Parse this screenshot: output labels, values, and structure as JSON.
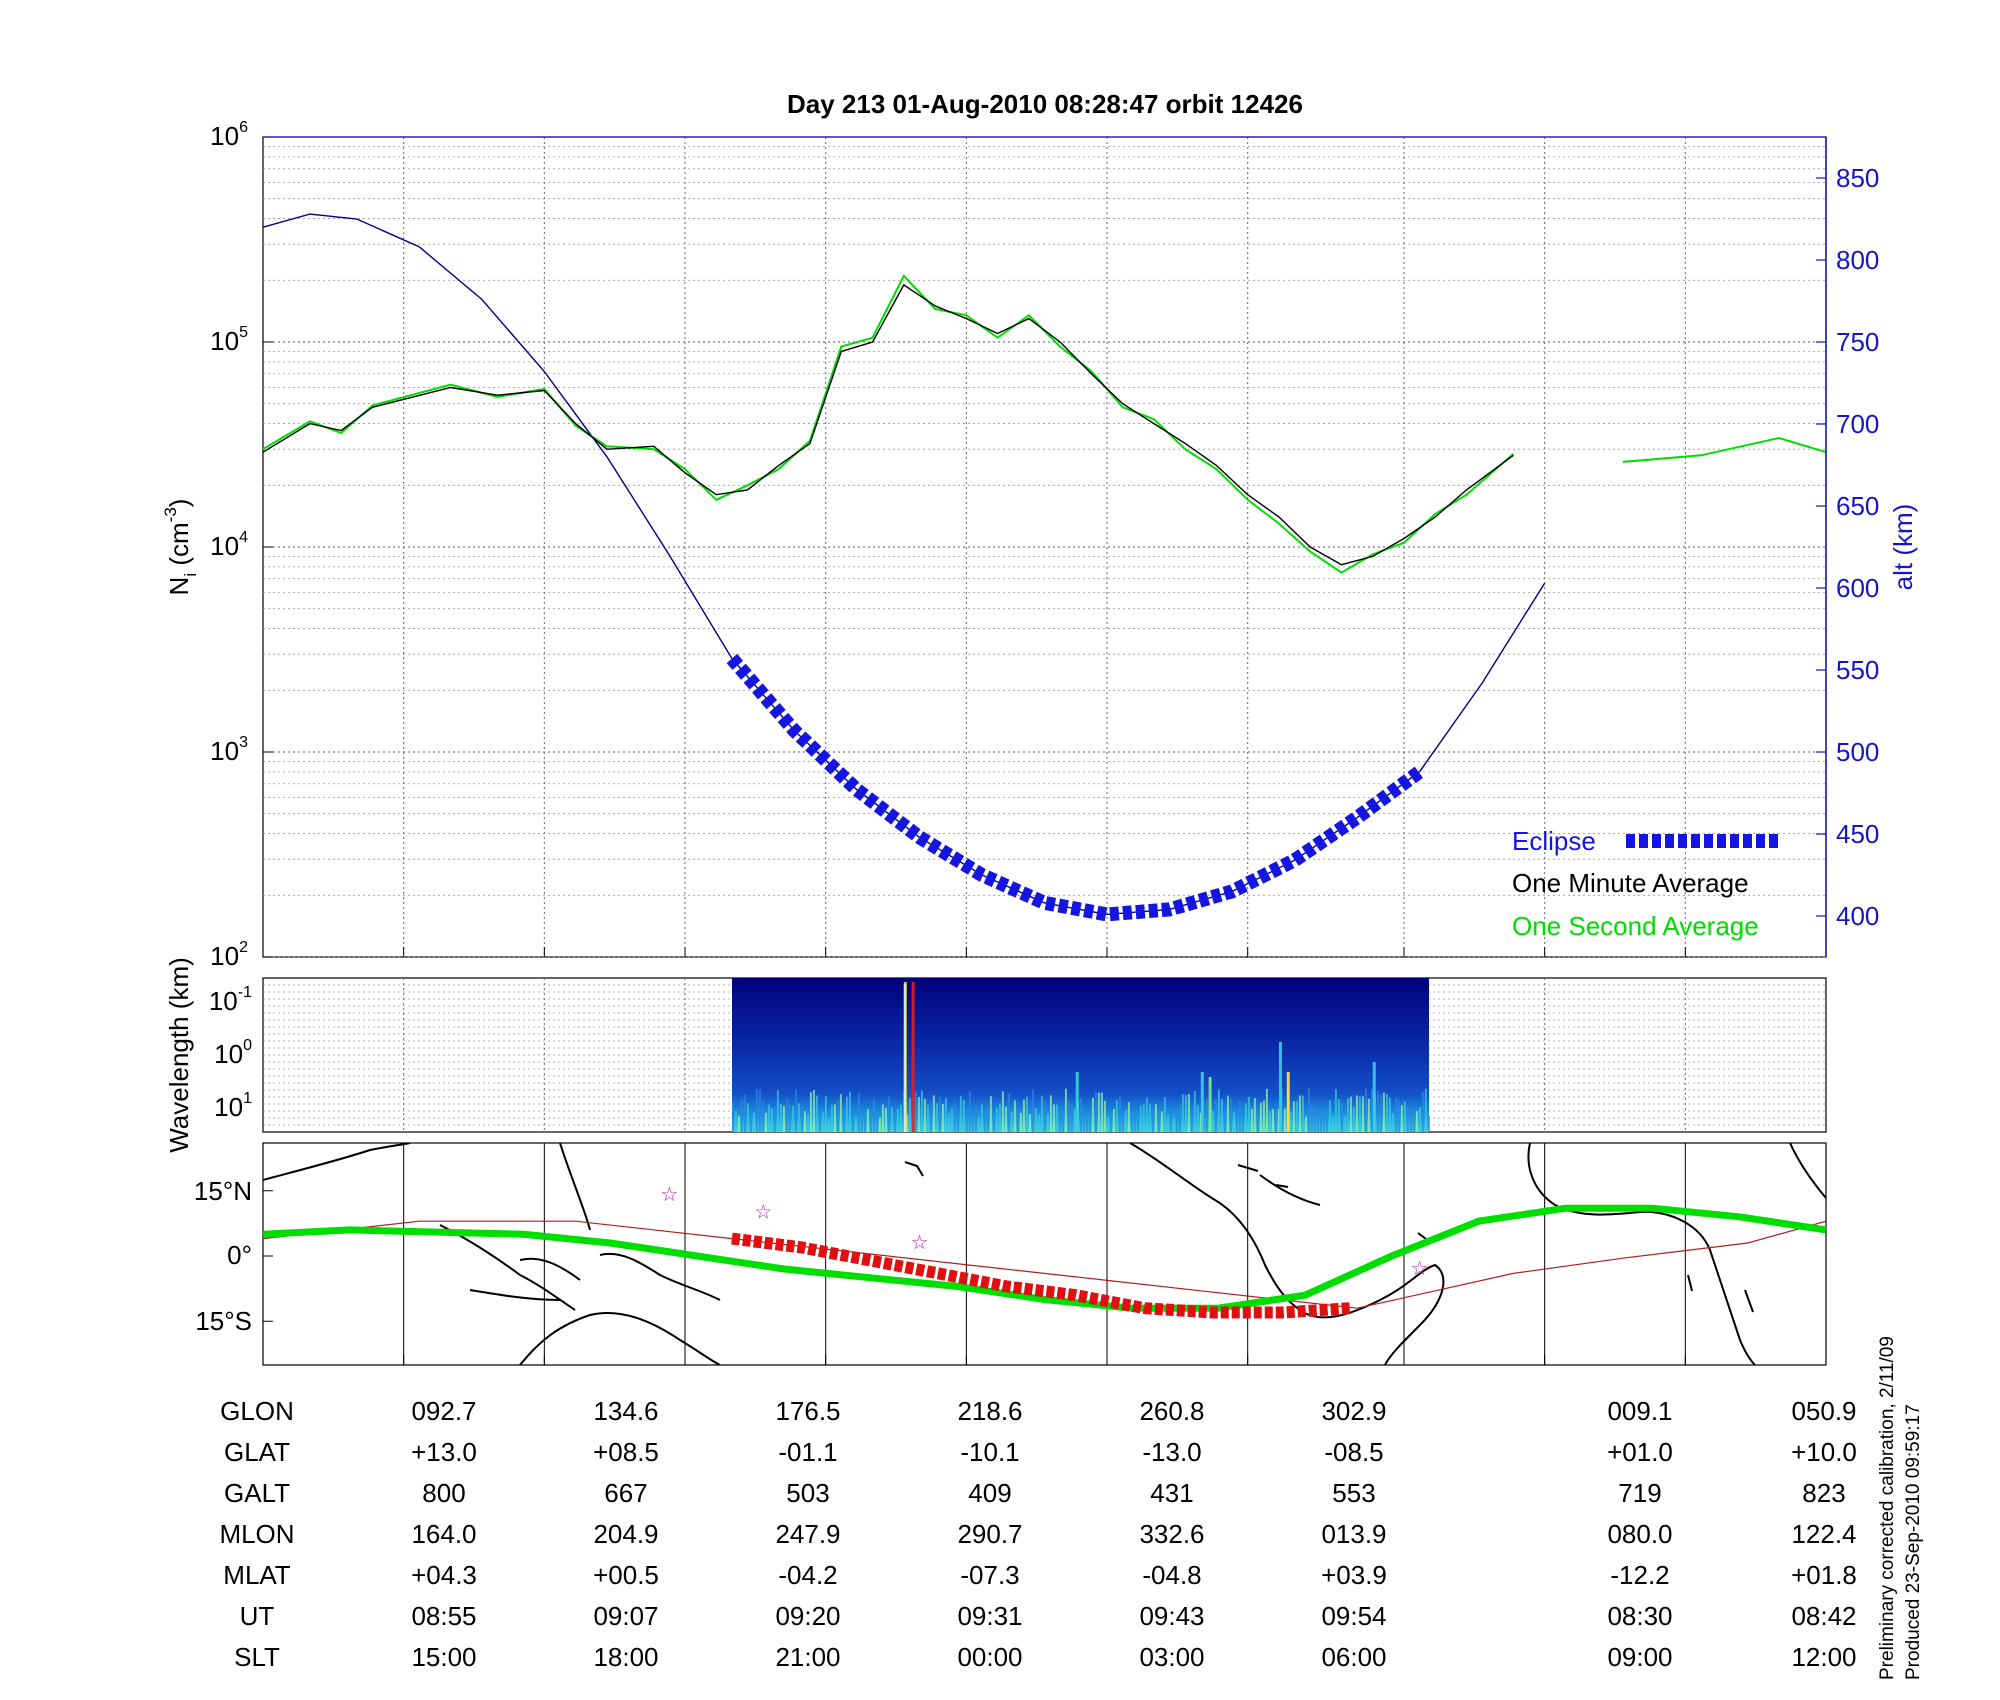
{
  "chart_data": [
    {
      "type": "line",
      "title": "Day 213  01-Aug-2010 08:28:47   orbit 12426",
      "ylabel": "N_i (cm^-3)",
      "ylabel_parts": {
        "base": "N",
        "sub": "i",
        "unit_open": " (cm",
        "unit_exp": "-3",
        "unit_close": ")"
      },
      "yscale": "log",
      "ylim": [
        100,
        1000000
      ],
      "y_ticks": [
        {
          "base": "10",
          "exp": "2"
        },
        {
          "base": "10",
          "exp": "3"
        },
        {
          "base": "10",
          "exp": "4"
        },
        {
          "base": "10",
          "exp": "5"
        },
        {
          "base": "10",
          "exp": "6"
        }
      ],
      "y2label": "alt (km)",
      "y2lim": [
        375,
        875
      ],
      "y2_ticks": [
        "400",
        "450",
        "500",
        "550",
        "600",
        "650",
        "700",
        "750",
        "800",
        "850"
      ],
      "grid": true,
      "legend_position": "bottom-right",
      "series": [
        {
          "name": "Eclipse",
          "color": "#1515e0",
          "axis": "alt",
          "style": "thick-dashed",
          "x": [
            0.3,
            0.34,
            0.38,
            0.42,
            0.46,
            0.5,
            0.54,
            0.58,
            0.62,
            0.66,
            0.7,
            0.74
          ],
          "values": [
            557,
            513,
            477,
            448,
            425,
            408,
            401,
            404,
            415,
            434,
            460,
            488
          ]
        },
        {
          "name": "One Minute Average",
          "color": "#000000",
          "axis": "ni",
          "x": [
            0,
            0.03,
            0.05,
            0.07,
            0.12,
            0.15,
            0.18,
            0.2,
            0.22,
            0.25,
            0.27,
            0.29,
            0.31,
            0.33,
            0.35,
            0.37,
            0.39,
            0.41,
            0.43,
            0.45,
            0.47,
            0.49,
            0.51,
            0.53,
            0.55,
            0.57,
            0.59,
            0.61,
            0.63,
            0.65,
            0.67,
            0.69,
            0.71,
            0.73,
            0.75,
            0.77,
            0.8
          ],
          "values": [
            29000,
            40000,
            37000,
            48000,
            60000,
            55000,
            58000,
            40000,
            30000,
            31000,
            23000,
            18000,
            19000,
            25000,
            32000,
            90000,
            100000,
            190000,
            150000,
            130000,
            110000,
            130000,
            100000,
            70000,
            50000,
            40000,
            32000,
            25000,
            18000,
            14000,
            10000,
            8200,
            9000,
            11000,
            14000,
            19000,
            28000
          ]
        },
        {
          "name": "One Second Average",
          "color": "#00dd00",
          "axis": "ni",
          "x": [
            0,
            0.03,
            0.05,
            0.07,
            0.12,
            0.15,
            0.18,
            0.2,
            0.22,
            0.25,
            0.27,
            0.29,
            0.31,
            0.33,
            0.35,
            0.37,
            0.39,
            0.41,
            0.43,
            0.45,
            0.47,
            0.49,
            0.51,
            0.53,
            0.55,
            0.57,
            0.59,
            0.61,
            0.63,
            0.65,
            0.67,
            0.69,
            0.71,
            0.73,
            0.75,
            0.77,
            0.8
          ],
          "values": [
            30000,
            41000,
            36000,
            49000,
            62000,
            54000,
            59000,
            39000,
            31000,
            30000,
            24000,
            17000,
            20000,
            24000,
            33000,
            95000,
            105000,
            210000,
            145000,
            135000,
            105000,
            135000,
            95000,
            72000,
            48000,
            42000,
            30000,
            24000,
            17000,
            13000,
            9500,
            7500,
            9200,
            10500,
            14500,
            18000,
            28500
          ]
        },
        {
          "name": "",
          "color": "#00dd00",
          "axis": "ni",
          "x": [
            0.87,
            0.92,
            0.97,
            1.0
          ],
          "values": [
            26000,
            28000,
            34000,
            29000
          ]
        },
        {
          "name": "",
          "color": "#00008b",
          "axis": "alt",
          "x": [
            0,
            0.03,
            0.06,
            0.1,
            0.14,
            0.18,
            0.22,
            0.26,
            0.3,
            0.34,
            0.38,
            0.42,
            0.46,
            0.5,
            0.54,
            0.58,
            0.62,
            0.66,
            0.7,
            0.74,
            0.78,
            0.82
          ],
          "values": [
            820,
            828,
            825,
            808,
            776,
            732,
            680,
            620,
            557,
            513,
            477,
            448,
            425,
            408,
            401,
            404,
            415,
            434,
            460,
            488,
            542,
            603
          ]
        }
      ]
    },
    {
      "type": "heatmap",
      "ylabel": "Wavelength (km)",
      "y_ticks": [
        {
          "base": "10",
          "exp": "-1"
        },
        {
          "base": "10",
          "exp": "0"
        },
        {
          "base": "10",
          "exp": "1"
        }
      ],
      "data_span": [
        0.3,
        0.746
      ]
    },
    {
      "type": "line",
      "y_ticks": [
        "15°N",
        "0°",
        "15°S"
      ],
      "series": [
        {
          "name": "",
          "color": "#00dd00",
          "lat": [
            5,
            6,
            5.5,
            5,
            3,
            0,
            -3,
            -5,
            -7,
            -10,
            -12,
            -12,
            -9,
            0,
            8,
            11,
            11,
            9,
            6
          ]
        },
        {
          "name": "",
          "color": "#e01010",
          "lat": [
            4,
            2,
            -1,
            -4,
            -7,
            -9,
            -12,
            -13,
            -13,
            -12
          ]
        }
      ]
    }
  ],
  "table": {
    "labels": [
      "GLON",
      "GLAT",
      "GALT",
      "MLON",
      "MLAT",
      "UT",
      "SLT"
    ],
    "columns": [
      [
        "092.7",
        "+13.0",
        "800",
        "164.0",
        "+04.3",
        "08:55",
        "15:00"
      ],
      [
        "134.6",
        "+08.5",
        "667",
        "204.9",
        "+00.5",
        "09:07",
        "18:00"
      ],
      [
        "176.5",
        "-01.1",
        "503",
        "247.9",
        "-04.2",
        "09:20",
        "21:00"
      ],
      [
        "218.6",
        "-10.1",
        "409",
        "290.7",
        "-07.3",
        "09:31",
        "00:00"
      ],
      [
        "260.8",
        "-13.0",
        "431",
        "332.6",
        "-04.8",
        "09:43",
        "03:00"
      ],
      [
        "302.9",
        "-08.5",
        "553",
        "013.9",
        "+03.9",
        "09:54",
        "06:00"
      ],
      [
        "009.1",
        "+01.0",
        "719",
        "080.0",
        "-12.2",
        "08:30",
        "09:00"
      ],
      [
        "050.9",
        "+10.0",
        "823",
        "122.4",
        "+01.8",
        "08:42",
        "12:00"
      ]
    ]
  },
  "note": {
    "line1": "Preliminary corrected calibration, 2/11/09",
    "line2": "Produced 23-Sep-2010 09:59:17"
  }
}
